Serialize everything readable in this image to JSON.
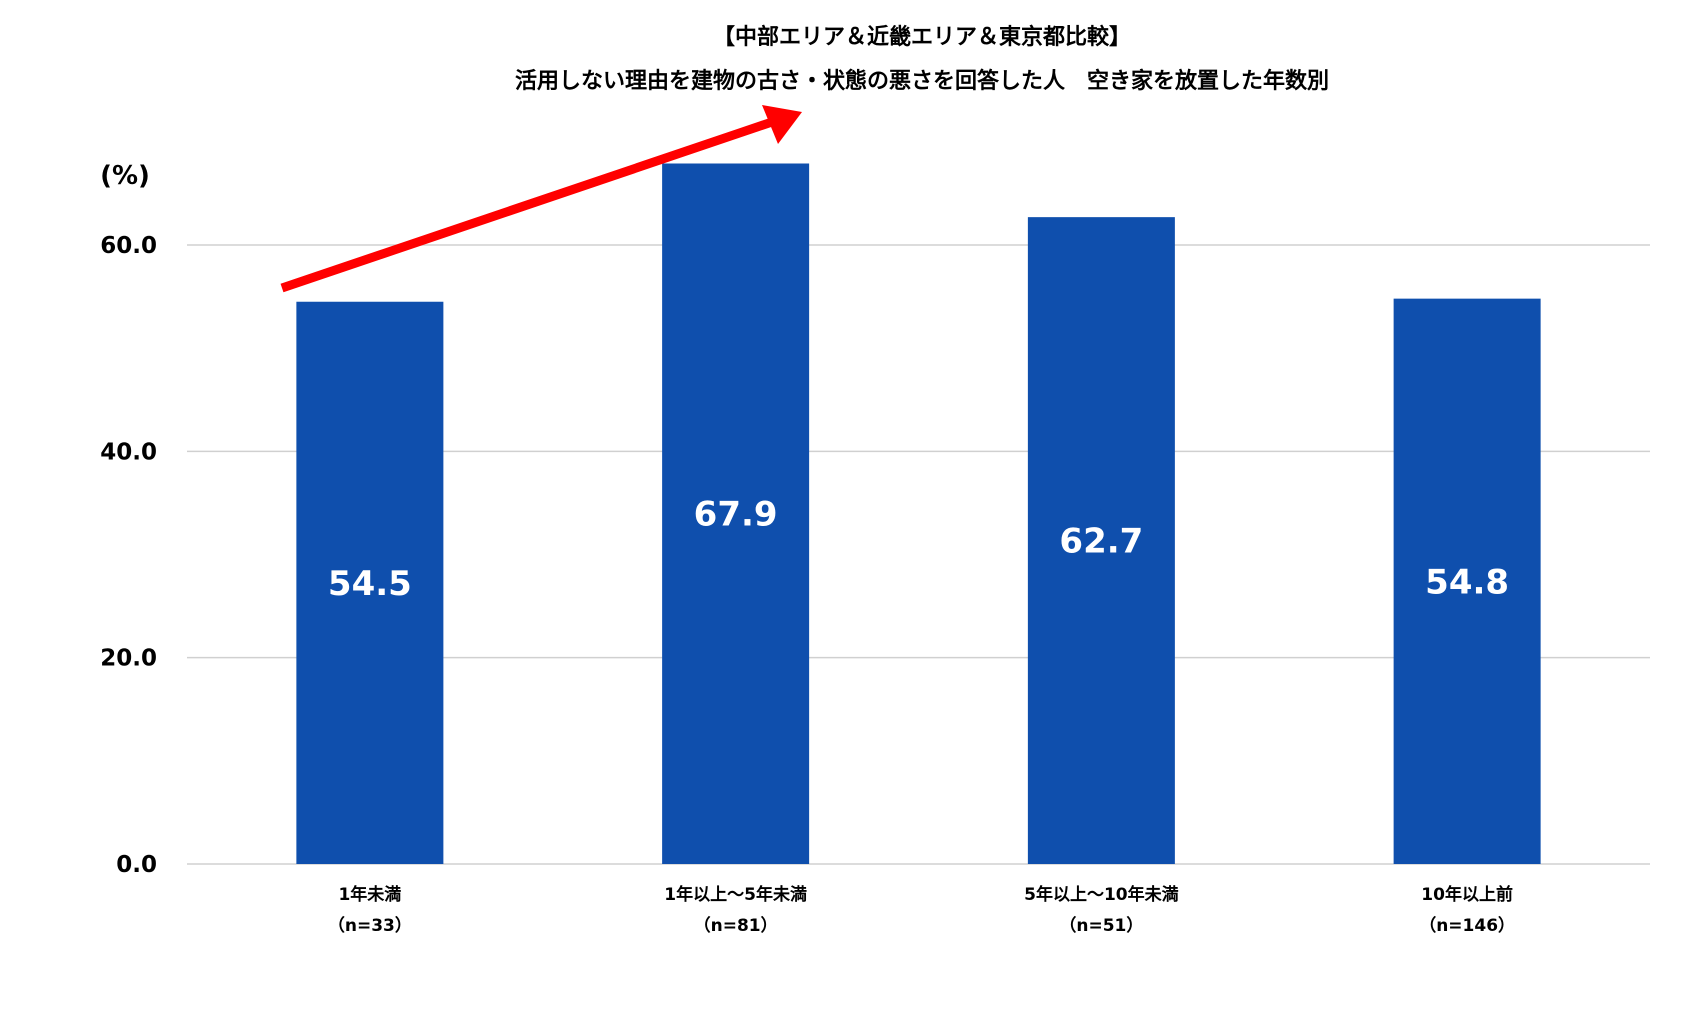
{
  "chart_data": {
    "type": "bar",
    "title": "【中部エリア＆近畿エリア＆東京都比較】",
    "subtitle": "活用しない理由を建物の古さ・状態の悪さを回答した人　空き家を放置した年数別",
    "ylabel": "(%)",
    "xlabel": "",
    "ylim": [
      0,
      70
    ],
    "yticks": [
      0,
      20,
      40,
      60
    ],
    "ytick_labels": [
      "0.0",
      "20.0",
      "40.0",
      "60.0"
    ],
    "grid": true,
    "categories": [
      {
        "label": "1年未満",
        "n": "（n=33）"
      },
      {
        "label": "1年以上～5年未満",
        "n": "（n=81）"
      },
      {
        "label": "5年以上～10年未満",
        "n": "（n=51）"
      },
      {
        "label": "10年以上前",
        "n": "（n=146）"
      }
    ],
    "values": [
      54.5,
      67.9,
      62.7,
      54.8
    ],
    "value_labels": [
      "54.5",
      "67.9",
      "62.7",
      "54.8"
    ],
    "annotation": "upward-trend-arrow",
    "colors": {
      "bar": "#0f4fad",
      "arrow": "#ff0000",
      "grid": "#d0d0d0"
    }
  }
}
